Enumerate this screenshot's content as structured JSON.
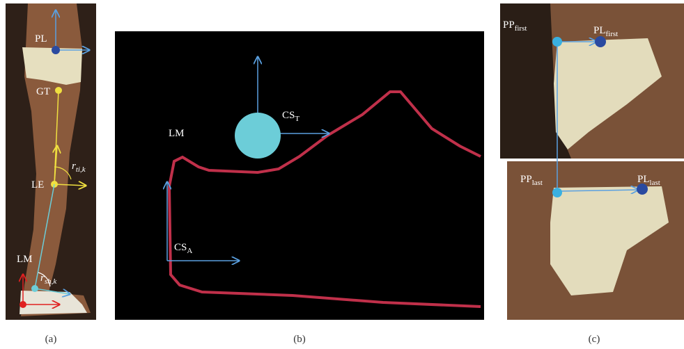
{
  "panels": [
    {
      "label": "(a)",
      "annotations": [
        {
          "text": "PL"
        },
        {
          "text": "GT"
        },
        {
          "base": "r",
          "sub": "ti,k"
        },
        {
          "text": "LE"
        },
        {
          "text": "LM"
        },
        {
          "base": "r",
          "sub": "sh,k"
        }
      ]
    },
    {
      "label": "(b)",
      "annotations": [
        {
          "base": "CS",
          "sub": "T"
        },
        {
          "text": "LM"
        },
        {
          "base": "CS",
          "sub": "A"
        }
      ]
    },
    {
      "label": "(c)",
      "annotations": [
        {
          "base": "PP",
          "sub": "first"
        },
        {
          "base": "PL",
          "sub": "first"
        },
        {
          "base": "PP",
          "sub": "last"
        },
        {
          "base": "PL",
          "sub": "last"
        }
      ]
    }
  ]
}
